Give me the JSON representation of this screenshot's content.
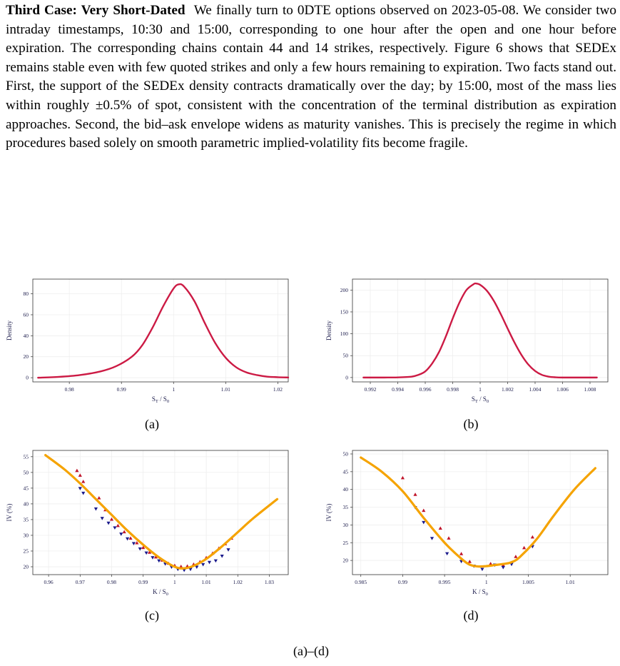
{
  "paragraph": {
    "heading": "Third Case: Very Short-Dated",
    "body": "We finally turn to 0DTE options observed on 2023-05-08. We consider two intraday timestamps, 10:30 and 15:00, corresponding to one hour after the open and one hour before expiration. The corresponding chains contain 44 and 14 strikes, respectively. Figure 6 shows that SEDEx remains stable even with few quoted strikes and only a few hours remaining to expiration. Two facts stand out. First, the support of the SEDEx density contracts dramatically over the day; by 15:00, most of the mass lies within roughly ±0.5% of spot, consistent with the concentration of the terminal distribution as expiration approaches. Second, the bid–ask envelope widens as maturity vanishes. This is precisely the regime in which procedures based solely on smooth parametric implied-volatility fits become fragile."
  },
  "captions": {
    "a": "(a)",
    "b": "(b)",
    "c": "(c)",
    "d": "(d)"
  },
  "figure_caption": "(a)–(d)",
  "colors": {
    "density": "#cc1a44",
    "fit": "#f5a300",
    "ask": "#c0142a",
    "bid": "#1a1a8c",
    "grid": "#ececec"
  },
  "chart_data": [
    {
      "type": "line",
      "panel": "a",
      "xlabel": "S_T / S_0",
      "ylabel": "Density",
      "xlim": [
        0.973,
        1.022
      ],
      "ylim": [
        -4,
        94
      ],
      "xticks": [
        0.98,
        0.99,
        1,
        1.01,
        1.02
      ],
      "xtick_labels": [
        "0.98",
        "0.99",
        "1",
        "1.01",
        "1.02"
      ],
      "yticks": [
        0,
        20,
        40,
        60,
        80
      ],
      "ytick_labels": [
        "0",
        "20",
        "40",
        "60",
        "80"
      ],
      "series": [
        {
          "x": [
            0.974,
            0.978,
            0.982,
            0.986,
            0.989,
            0.992,
            0.994,
            0.996,
            0.998,
            1.0,
            1.001,
            1.002,
            1.004,
            1.006,
            1.008,
            1.01,
            1.012,
            1.014,
            1.016,
            1.018,
            1.02,
            1.022
          ],
          "y": [
            0,
            0.8,
            2.5,
            6,
            11,
            20,
            31,
            48,
            68,
            85,
            89,
            87,
            73,
            52,
            33,
            19,
            10,
            5,
            2.5,
            1,
            0.5,
            0.2
          ]
        }
      ]
    },
    {
      "type": "line",
      "panel": "b",
      "xlabel": "S_T / S_0",
      "ylabel": "Density",
      "xlim": [
        0.9907,
        1.0093
      ],
      "ylim": [
        -10,
        225
      ],
      "xticks": [
        0.992,
        0.994,
        0.996,
        0.998,
        1,
        1.002,
        1.004,
        1.006,
        1.008
      ],
      "xtick_labels": [
        "0.992",
        "0.994",
        "0.996",
        "0.998",
        "1",
        "1.002",
        "1.004",
        "1.006",
        "1.008"
      ],
      "yticks": [
        0,
        50,
        100,
        150,
        200
      ],
      "ytick_labels": [
        "0",
        "50",
        "100",
        "150",
        "200"
      ],
      "series": [
        {
          "x": [
            0.9915,
            0.993,
            0.994,
            0.995,
            0.9955,
            0.996,
            0.9965,
            0.997,
            0.9975,
            0.998,
            0.9985,
            0.999,
            0.9995,
            0.9997,
            1.0,
            1.0005,
            1.001,
            1.0015,
            1.002,
            1.0025,
            1.003,
            1.0035,
            1.004,
            1.0045,
            1.005,
            1.0055,
            1.006,
            1.007,
            1.0085
          ],
          "y": [
            0,
            0,
            0.3,
            2,
            6,
            14,
            32,
            58,
            94,
            135,
            172,
            200,
            213,
            215,
            212,
            198,
            175,
            145,
            112,
            80,
            52,
            30,
            15,
            6,
            2,
            0.5,
            0,
            0,
            0
          ]
        }
      ]
    },
    {
      "type": "line",
      "panel": "c",
      "xlabel": "K / S_0",
      "ylabel": "IV (%)",
      "xlim": [
        0.955,
        1.036
      ],
      "ylim": [
        17.5,
        57
      ],
      "xticks": [
        0.96,
        0.97,
        0.98,
        0.99,
        1,
        1.01,
        1.02,
        1.03
      ],
      "xtick_labels": [
        "0.96",
        "0.97",
        "0.98",
        "0.99",
        "1",
        "1.01",
        "1.02",
        "1.03"
      ],
      "yticks": [
        20,
        25,
        30,
        35,
        40,
        45,
        50,
        55
      ],
      "ytick_labels": [
        "20",
        "25",
        "30",
        "35",
        "40",
        "45",
        "50",
        "55"
      ],
      "series": [
        {
          "name": "fit",
          "x": [
            0.959,
            0.965,
            0.97,
            0.975,
            0.98,
            0.985,
            0.99,
            0.995,
            1.0,
            1.003,
            1.006,
            1.01,
            1.015,
            1.02,
            1.025,
            1.0325
          ],
          "y": [
            55.5,
            51,
            46.5,
            41.5,
            36.5,
            31.5,
            27,
            23,
            20,
            19.5,
            20.3,
            22.5,
            26.5,
            31,
            35.5,
            41.5
          ]
        },
        {
          "name": "ask",
          "x": [
            0.969,
            0.97,
            0.971,
            0.976,
            0.978,
            0.98,
            0.982,
            0.984,
            0.986,
            0.988,
            0.99,
            0.992,
            0.994,
            0.996,
            0.998,
            1.0,
            1.002,
            1.004,
            1.006,
            1.008,
            1.01,
            1.012,
            1.014,
            1.016,
            1.018
          ],
          "y": [
            50.5,
            49,
            47,
            41.8,
            38,
            35,
            33,
            31,
            29,
            27.5,
            26,
            24.5,
            23,
            22,
            21,
            20.3,
            20,
            20.1,
            20.7,
            21.5,
            22.8,
            24.2,
            25.8,
            27.2,
            29
          ]
        },
        {
          "name": "bid",
          "x": [
            0.97,
            0.971,
            0.975,
            0.977,
            0.979,
            0.981,
            0.983,
            0.985,
            0.987,
            0.989,
            0.991,
            0.993,
            0.995,
            0.997,
            0.999,
            1.001,
            1.003,
            1.005,
            1.007,
            1.009,
            1.011,
            1.013,
            1.015,
            1.017
          ],
          "y": [
            45,
            43.5,
            38.5,
            35.5,
            34,
            32.5,
            30.5,
            29,
            27.5,
            25.8,
            24.5,
            23,
            22,
            21,
            20,
            19.3,
            19,
            19.3,
            20,
            20.8,
            21.5,
            22,
            23.5,
            25.5
          ]
        }
      ]
    },
    {
      "type": "line",
      "panel": "d",
      "xlabel": "K / S_0",
      "ylabel": "IV (%)",
      "xlim": [
        0.984,
        1.0145
      ],
      "ylim": [
        16,
        51
      ],
      "xticks": [
        0.985,
        0.99,
        0.995,
        1,
        1.005,
        1.01
      ],
      "xtick_labels": [
        "0.985",
        "0.99",
        "0.995",
        "1",
        "1.005",
        "1.01"
      ],
      "yticks": [
        20,
        25,
        30,
        35,
        40,
        45,
        50
      ],
      "ytick_labels": [
        "20",
        "25",
        "30",
        "35",
        "40",
        "45",
        "50"
      ],
      "series": [
        {
          "name": "fit",
          "x": [
            0.985,
            0.9875,
            0.99,
            0.9925,
            0.995,
            0.997,
            0.998,
            0.999,
            1.0,
            1.001,
            1.002,
            1.003,
            1.004,
            1.006,
            1.008,
            1.0105,
            1.013
          ],
          "y": [
            49,
            45,
            39.5,
            32,
            25,
            20.5,
            18.8,
            18.3,
            18.4,
            18.7,
            19,
            19.5,
            21,
            26,
            32.5,
            40,
            46
          ]
        },
        {
          "name": "ask",
          "x": [
            0.99,
            0.9915,
            0.9925,
            0.9945,
            0.9955,
            0.997,
            0.998,
            1.0005,
            1.002,
            1.0035,
            1.0045,
            1.0055
          ],
          "y": [
            43.2,
            38.5,
            34,
            29,
            26.2,
            21.8,
            19.6,
            19,
            18.6,
            21,
            23.5,
            26.5
          ]
        },
        {
          "name": "bid",
          "x": [
            0.9915,
            0.9925,
            0.9935,
            0.9953,
            0.997,
            0.9985,
            0.9995,
            1.001,
            1.002,
            1.003,
            1.0055
          ],
          "y": [
            35,
            30.8,
            26.3,
            22,
            19.8,
            18.5,
            17.6,
            18.8,
            18.1,
            19,
            24
          ]
        }
      ]
    }
  ]
}
